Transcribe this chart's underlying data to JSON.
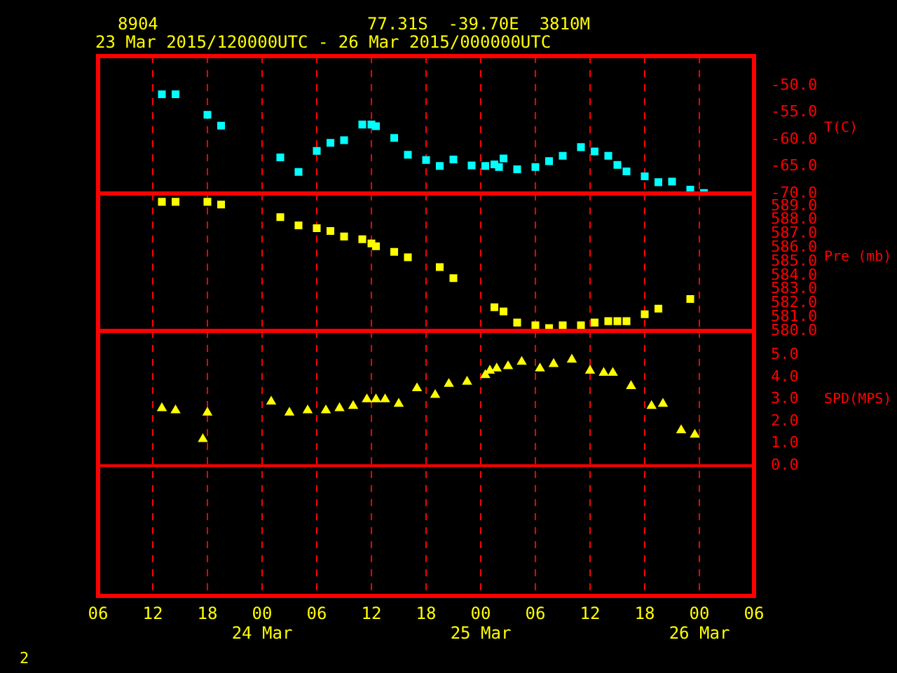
{
  "chart_data": [
    {
      "type": "scatter",
      "title": "8904",
      "subtitle": "23 Mar 2015/120000UTC - 26 Mar 2015/000000UTC",
      "annotations": [
        "77.31S  -39.70E  3810M",
        "2"
      ],
      "ylabel": "T(C)",
      "xlim": [
        "2015-03-23T06:00",
        "2015-03-26T06:00"
      ],
      "xticks": [
        {
          "value": "2015-03-23T06:00",
          "label": null
        },
        {
          "value": "2015-03-23T12:00",
          "label": null
        },
        {
          "value": "2015-03-23T18:00",
          "label": null
        },
        {
          "value": "2015-03-24T00:00",
          "label": null
        },
        {
          "value": "2015-03-24T06:00",
          "label": null
        },
        {
          "value": "2015-03-24T12:00",
          "label": null
        },
        {
          "value": "2015-03-24T18:00",
          "label": null
        },
        {
          "value": "2015-03-25T00:00",
          "label": null
        },
        {
          "value": "2015-03-25T06:00",
          "label": null
        },
        {
          "value": "2015-03-25T12:00",
          "label": null
        },
        {
          "value": "2015-03-25T18:00",
          "label": null
        },
        {
          "value": "2015-03-26T00:00",
          "label": null
        },
        {
          "value": "2015-03-26T06:00",
          "label": null
        }
      ],
      "ylim": [
        -70,
        -44.5
      ],
      "yticks": [
        {
          "value": -50,
          "label": "-50.0"
        },
        {
          "value": -55,
          "label": "-55.0"
        },
        {
          "value": -60,
          "label": "-60.0"
        },
        {
          "value": -65,
          "label": "-65.0"
        },
        {
          "value": -70,
          "label": "-70.0"
        }
      ],
      "grid": "x",
      "legend": false,
      "tick_labels": "y",
      "series": [
        {
          "color": "#00ffff",
          "marker": "square",
          "x": [
            "2015-03-23T13:00",
            "2015-03-23T14:30",
            "2015-03-23T18:00",
            "2015-03-23T19:30",
            "2015-03-24T02:00",
            "2015-03-24T04:00",
            "2015-03-24T06:00",
            "2015-03-24T07:30",
            "2015-03-24T09:00",
            "2015-03-24T11:00",
            "2015-03-24T12:00",
            "2015-03-24T12:30",
            "2015-03-24T14:30",
            "2015-03-24T16:00",
            "2015-03-24T18:00",
            "2015-03-24T19:30",
            "2015-03-24T21:00",
            "2015-03-24T23:00",
            "2015-03-25T00:30",
            "2015-03-25T01:30",
            "2015-03-25T02:00",
            "2015-03-25T02:30",
            "2015-03-25T04:00",
            "2015-03-25T06:00",
            "2015-03-25T07:30",
            "2015-03-25T09:00",
            "2015-03-25T11:00",
            "2015-03-25T12:30",
            "2015-03-25T14:00",
            "2015-03-25T15:00",
            "2015-03-25T16:00",
            "2015-03-25T18:00",
            "2015-03-25T19:30",
            "2015-03-25T21:00",
            "2015-03-25T23:00",
            "2015-03-26T00:30"
          ],
          "values": [
            -51.6,
            -51.6,
            -55.4,
            -57.4,
            -63.3,
            -66.0,
            -62.1,
            -60.6,
            -60.1,
            -57.2,
            -57.2,
            -57.5,
            -59.7,
            -62.8,
            -63.8,
            -64.9,
            -63.7,
            -64.8,
            -64.9,
            -64.6,
            -65.1,
            -63.5,
            -65.5,
            -65.1,
            -64.0,
            -63.0,
            -61.4,
            -62.2,
            -63.0,
            -64.7,
            -65.9,
            -66.8,
            -67.9,
            -67.8,
            -69.3,
            -69.9
          ]
        }
      ]
    },
    {
      "type": "scatter",
      "ylabel": "Pre (mb)",
      "xlim": [
        "2015-03-23T06:00",
        "2015-03-26T06:00"
      ],
      "xticks": [
        {
          "value": "2015-03-23T06:00",
          "label": null
        },
        {
          "value": "2015-03-23T12:00",
          "label": null
        },
        {
          "value": "2015-03-23T18:00",
          "label": null
        },
        {
          "value": "2015-03-24T00:00",
          "label": null
        },
        {
          "value": "2015-03-24T06:00",
          "label": null
        },
        {
          "value": "2015-03-24T12:00",
          "label": null
        },
        {
          "value": "2015-03-24T18:00",
          "label": null
        },
        {
          "value": "2015-03-25T00:00",
          "label": null
        },
        {
          "value": "2015-03-25T06:00",
          "label": null
        },
        {
          "value": "2015-03-25T12:00",
          "label": null
        },
        {
          "value": "2015-03-25T18:00",
          "label": null
        },
        {
          "value": "2015-03-26T00:00",
          "label": null
        },
        {
          "value": "2015-03-26T06:00",
          "label": null
        }
      ],
      "ylim": [
        580,
        589.9
      ],
      "yticks": [
        {
          "value": 580,
          "label": "580.0"
        },
        {
          "value": 581,
          "label": "581.0"
        },
        {
          "value": 582,
          "label": "582.0"
        },
        {
          "value": 583,
          "label": "583.0"
        },
        {
          "value": 584,
          "label": "584.0"
        },
        {
          "value": 585,
          "label": "585.0"
        },
        {
          "value": 586,
          "label": "586.0"
        },
        {
          "value": 587,
          "label": "587.0"
        },
        {
          "value": 588,
          "label": "588.0"
        },
        {
          "value": 589,
          "label": "589.0"
        }
      ],
      "grid": "x",
      "legend": false,
      "tick_labels": "y",
      "series": [
        {
          "color": "#ffff00",
          "marker": "square",
          "x": [
            "2015-03-23T13:00",
            "2015-03-23T14:30",
            "2015-03-23T18:00",
            "2015-03-23T19:30",
            "2015-03-24T02:00",
            "2015-03-24T04:00",
            "2015-03-24T06:00",
            "2015-03-24T07:30",
            "2015-03-24T09:00",
            "2015-03-24T11:00",
            "2015-03-24T12:00",
            "2015-03-24T12:30",
            "2015-03-24T14:30",
            "2015-03-24T16:00",
            "2015-03-24T19:30",
            "2015-03-24T21:00",
            "2015-03-25T01:30",
            "2015-03-25T02:30",
            "2015-03-25T04:00",
            "2015-03-25T06:00",
            "2015-03-25T07:30",
            "2015-03-25T09:00",
            "2015-03-25T11:00",
            "2015-03-25T12:30",
            "2015-03-25T14:00",
            "2015-03-25T15:00",
            "2015-03-25T16:00",
            "2015-03-25T18:00",
            "2015-03-25T19:30",
            "2015-03-25T23:00"
          ],
          "values": [
            589.3,
            589.3,
            589.3,
            589.1,
            588.2,
            587.6,
            587.4,
            587.2,
            586.8,
            586.6,
            586.3,
            586.1,
            585.7,
            585.3,
            584.6,
            583.8,
            581.7,
            581.4,
            580.6,
            580.4,
            580.2,
            580.4,
            580.4,
            580.6,
            580.7,
            580.7,
            580.7,
            581.2,
            581.6,
            582.3
          ]
        }
      ]
    },
    {
      "type": "scatter",
      "ylabel": "SPD(MPS)",
      "xlim": [
        "2015-03-23T06:00",
        "2015-03-26T06:00"
      ],
      "xticks": [
        {
          "value": "2015-03-23T06:00",
          "label": "06"
        },
        {
          "value": "2015-03-23T12:00",
          "label": "12"
        },
        {
          "value": "2015-03-23T18:00",
          "label": "18"
        },
        {
          "value": "2015-03-24T00:00",
          "label": "00\n24 Mar"
        },
        {
          "value": "2015-03-24T06:00",
          "label": "06"
        },
        {
          "value": "2015-03-24T12:00",
          "label": "12"
        },
        {
          "value": "2015-03-24T18:00",
          "label": "18"
        },
        {
          "value": "2015-03-25T00:00",
          "label": "00\n25 Mar"
        },
        {
          "value": "2015-03-25T06:00",
          "label": "06"
        },
        {
          "value": "2015-03-25T12:00",
          "label": "12"
        },
        {
          "value": "2015-03-25T18:00",
          "label": "18"
        },
        {
          "value": "2015-03-26T00:00",
          "label": "00\n26 Mar"
        },
        {
          "value": "2015-03-26T06:00",
          "label": "06"
        }
      ],
      "ylim": [
        -5.9,
        6.1
      ],
      "yticks": [
        {
          "value": 0,
          "label": "0.0"
        },
        {
          "value": 1,
          "label": "1.0"
        },
        {
          "value": 2,
          "label": "2.0"
        },
        {
          "value": 3,
          "label": "3.0"
        },
        {
          "value": 4,
          "label": "4.0"
        },
        {
          "value": 5,
          "label": "5.0"
        }
      ],
      "grid": "x",
      "legend": false,
      "ref_lines": [
        {
          "axis": "y",
          "value": 0,
          "color": "#ff0000"
        }
      ],
      "series": [
        {
          "color": "#ffff00",
          "marker": "triangle",
          "x": [
            "2015-03-23T13:00",
            "2015-03-23T14:30",
            "2015-03-23T17:30",
            "2015-03-23T18:00",
            "2015-03-24T01:00",
            "2015-03-24T03:00",
            "2015-03-24T05:00",
            "2015-03-24T07:00",
            "2015-03-24T08:30",
            "2015-03-24T10:00",
            "2015-03-24T11:30",
            "2015-03-24T12:30",
            "2015-03-24T13:30",
            "2015-03-24T15:00",
            "2015-03-24T17:00",
            "2015-03-24T19:00",
            "2015-03-24T20:30",
            "2015-03-24T22:30",
            "2015-03-25T00:30",
            "2015-03-25T01:00",
            "2015-03-25T01:45",
            "2015-03-25T03:00",
            "2015-03-25T04:30",
            "2015-03-25T06:30",
            "2015-03-25T08:00",
            "2015-03-25T10:00",
            "2015-03-25T12:00",
            "2015-03-25T13:30",
            "2015-03-25T14:30",
            "2015-03-25T16:30",
            "2015-03-25T18:45",
            "2015-03-25T20:00",
            "2015-03-25T22:00",
            "2015-03-25T23:30"
          ],
          "values": [
            2.6,
            2.5,
            1.2,
            2.4,
            2.9,
            2.4,
            2.5,
            2.5,
            2.6,
            2.7,
            3.0,
            3.0,
            3.0,
            2.8,
            3.5,
            3.2,
            3.7,
            3.8,
            4.1,
            4.3,
            4.4,
            4.5,
            4.7,
            4.4,
            4.6,
            4.8,
            4.3,
            4.2,
            4.2,
            3.6,
            2.7,
            2.8,
            1.6,
            1.4
          ]
        }
      ]
    }
  ]
}
